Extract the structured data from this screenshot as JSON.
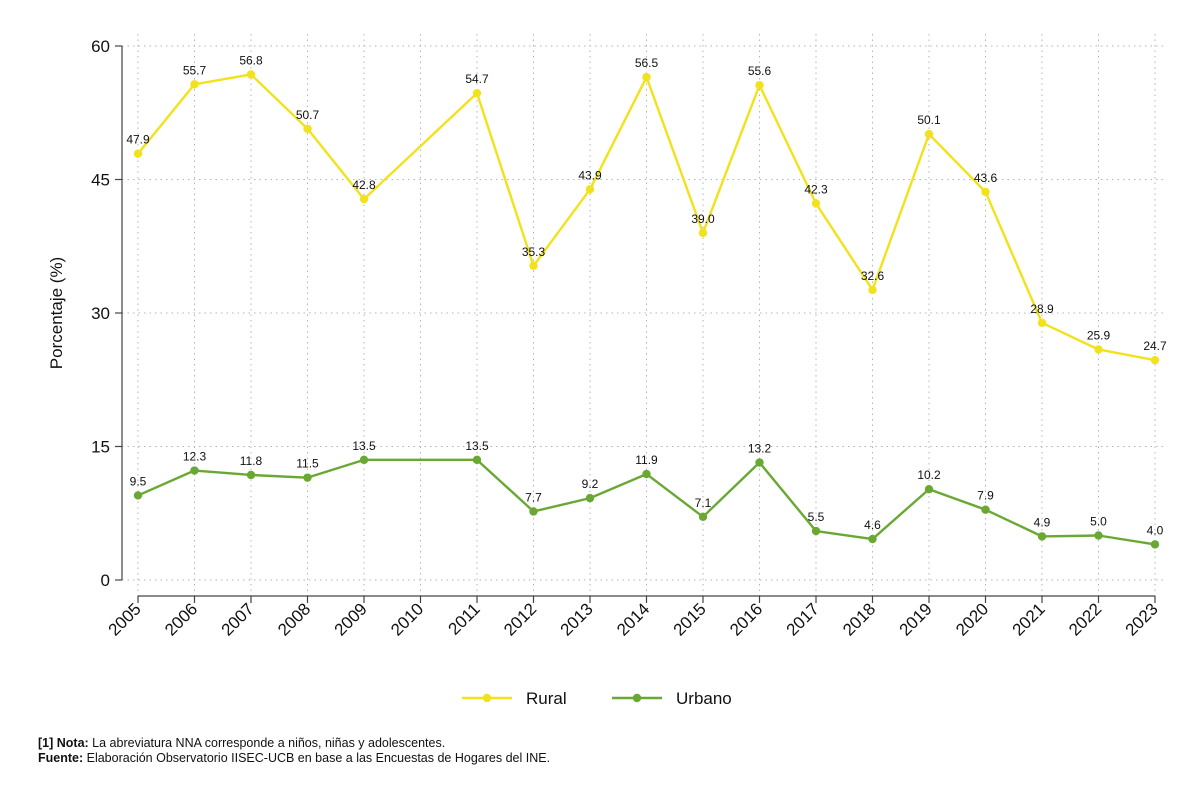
{
  "chart_data": {
    "type": "line",
    "title": "",
    "xlabel": "",
    "ylabel": "Porcentaje (%)",
    "ylim": [
      0,
      60
    ],
    "yticks": [
      0,
      15,
      30,
      45,
      60
    ],
    "categories": [
      "2005",
      "2006",
      "2007",
      "2008",
      "2009",
      "2010",
      "2011",
      "2012",
      "2013",
      "2014",
      "2015",
      "2016",
      "2017",
      "2018",
      "2019",
      "2020",
      "2021",
      "2022",
      "2023"
    ],
    "grid": true,
    "legend_position": "bottom",
    "series": [
      {
        "name": "Rural",
        "color": "#f2e21c",
        "points": [
          {
            "x": "2005",
            "y": 47.9,
            "label": "47.9"
          },
          {
            "x": "2006",
            "y": 55.7,
            "label": "55.7"
          },
          {
            "x": "2007",
            "y": 56.8,
            "label": "56.8"
          },
          {
            "x": "2008",
            "y": 50.7,
            "label": "50.7"
          },
          {
            "x": "2009",
            "y": 42.8,
            "label": "42.8"
          },
          {
            "x": "2011",
            "y": 54.7,
            "label": "54.7"
          },
          {
            "x": "2012",
            "y": 35.3,
            "label": "35.3"
          },
          {
            "x": "2013",
            "y": 43.9,
            "label": "43.9"
          },
          {
            "x": "2014",
            "y": 56.5,
            "label": "56.5"
          },
          {
            "x": "2015",
            "y": 39.0,
            "label": "39.0"
          },
          {
            "x": "2016",
            "y": 55.6,
            "label": "55.6"
          },
          {
            "x": "2017",
            "y": 42.3,
            "label": "42.3"
          },
          {
            "x": "2018",
            "y": 32.6,
            "label": "32.6"
          },
          {
            "x": "2019",
            "y": 50.1,
            "label": "50.1"
          },
          {
            "x": "2020",
            "y": 43.6,
            "label": "43.6"
          },
          {
            "x": "2021",
            "y": 28.9,
            "label": "28.9"
          },
          {
            "x": "2022",
            "y": 25.9,
            "label": "25.9"
          },
          {
            "x": "2023",
            "y": 24.7,
            "label": "24.7"
          }
        ]
      },
      {
        "name": "Urbano",
        "color": "#6aa834",
        "points": [
          {
            "x": "2005",
            "y": 9.5,
            "label": "9.5"
          },
          {
            "x": "2006",
            "y": 12.3,
            "label": "12.3"
          },
          {
            "x": "2007",
            "y": 11.8,
            "label": "11.8"
          },
          {
            "x": "2008",
            "y": 11.5,
            "label": "11.5"
          },
          {
            "x": "2009",
            "y": 13.5,
            "label": "13.5"
          },
          {
            "x": "2011",
            "y": 13.5,
            "label": "13.5"
          },
          {
            "x": "2012",
            "y": 7.7,
            "label": "7.7"
          },
          {
            "x": "2013",
            "y": 9.2,
            "label": "9.2"
          },
          {
            "x": "2014",
            "y": 11.9,
            "label": "11.9"
          },
          {
            "x": "2015",
            "y": 7.1,
            "label": "7.1"
          },
          {
            "x": "2016",
            "y": 13.2,
            "label": "13.2"
          },
          {
            "x": "2017",
            "y": 5.5,
            "label": "5.5"
          },
          {
            "x": "2018",
            "y": 4.6,
            "label": "4.6"
          },
          {
            "x": "2019",
            "y": 10.2,
            "label": "10.2"
          },
          {
            "x": "2020",
            "y": 7.9,
            "label": "7.9"
          },
          {
            "x": "2021",
            "y": 4.9,
            "label": "4.9"
          },
          {
            "x": "2022",
            "y": 5.0,
            "label": "5.0"
          },
          {
            "x": "2023",
            "y": 4.0,
            "label": "4.0"
          }
        ]
      }
    ]
  },
  "notes": {
    "note_tag": "[1] Nota:",
    "note_text": " La abreviatura NNA corresponde a niños, niñas y adolescentes.",
    "source_tag": "Fuente:",
    "source_text": " Elaboración Observatorio IISEC-UCB en base a las Encuestas de Hogares del INE."
  }
}
